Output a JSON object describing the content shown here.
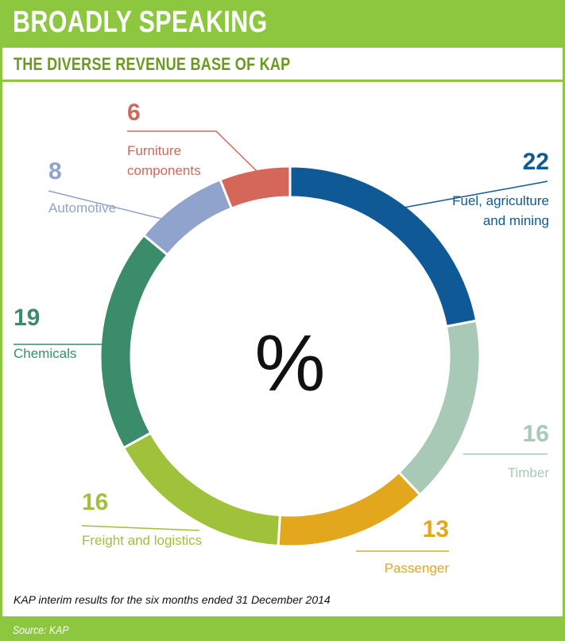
{
  "header": {
    "title": "BROADLY SPEAKING",
    "subtitle": "THE DIVERSE REVENUE BASE OF KAP"
  },
  "note": "KAP interim results for the six months ended 31 December 2014",
  "source": "Source: KAP",
  "center_label": "%",
  "colors": {
    "frame": "#8dc63f",
    "subtitle": "#6a9a1f"
  },
  "chart_data": {
    "type": "pie",
    "title": "THE DIVERSE REVENUE BASE OF KAP",
    "unit": "%",
    "slices": [
      {
        "label": "Fuel, agriculture and mining",
        "value": 22,
        "color": "#0f5a96"
      },
      {
        "label": "Timber",
        "value": 16,
        "color": "#a8c9b6"
      },
      {
        "label": "Passenger",
        "value": 13,
        "color": "#e3a71e"
      },
      {
        "label": "Freight and logistics",
        "value": 16,
        "color": "#a0c13a"
      },
      {
        "label": "Chemicals",
        "value": 19,
        "color": "#3a8c6b"
      },
      {
        "label": "Automotive",
        "value": 8,
        "color": "#8fa3cc"
      },
      {
        "label": "Furniture components",
        "value": 6,
        "color": "#d4675a"
      }
    ]
  }
}
